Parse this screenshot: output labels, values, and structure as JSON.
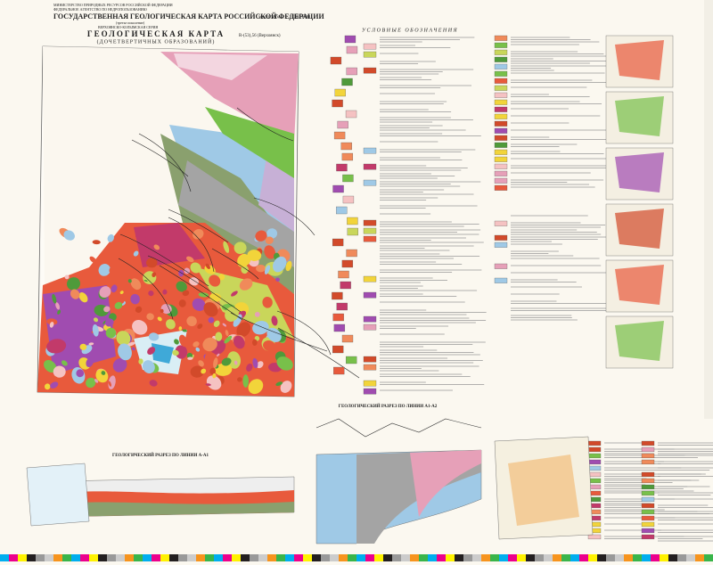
{
  "header": {
    "ministry": "МИНИСТЕРСТВО ПРИРОДНЫХ РЕСУРСОВ РОССИЙСКОЙ ФЕДЕРАЦИИ",
    "agency": "ФЕДЕРАЛЬНОЕ АГЕНТСТВО ПО НЕДРОПОЛЬЗОВАНИЮ",
    "title": "ГОСУДАРСТВЕННАЯ ГЕОЛОГИЧЕСКАЯ КАРТА РОССИЙСКОЙ ФЕДЕРАЦИИ",
    "scale": "масштаба 1 : 1 000 000",
    "generation": "(третье поколение)",
    "series": "ВЕРХОЯНСКО-КОЛЫМСКАЯ СЕРИЯ"
  },
  "map": {
    "title": "ГЕОЛОГИЧЕСКАЯ КАРТА",
    "subtitle": "(ДОЧЕТВЕРТИЧНЫХ ОБРАЗОВАНИЙ)",
    "sheet": "R-(53),56 (Верхоянск)"
  },
  "legend": {
    "title": "УСЛОВНЫЕ ОБОЗНАЧЕНИЯ"
  },
  "sections": {
    "first": "ГЕОЛОГИЧЕСКИЙ РАЗРЕЗ ПО ЛИНИИ А-А1",
    "second": "ГЕОЛОГИЧЕСКИЙ РАЗРЕЗ ПО ЛИНИИ А1-А2"
  }
}
